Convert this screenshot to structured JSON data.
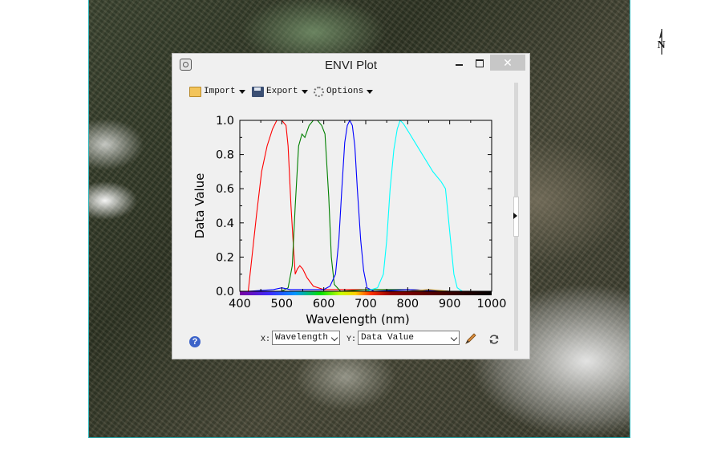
{
  "window": {
    "title": "ENVI Plot"
  },
  "toolbar": {
    "import_label": "Import",
    "export_label": "Export",
    "options_label": "Options"
  },
  "controls": {
    "x_label": "X:",
    "x_value": "Wavelength",
    "y_label": "Y:",
    "y_value": "Data Value"
  },
  "map": {
    "north_label": "N"
  },
  "chart_data": {
    "type": "line",
    "xlabel": "Wavelength (nm)",
    "ylabel": "Data Value",
    "xlim": [
      400,
      1000
    ],
    "ylim": [
      0.0,
      1.0
    ],
    "x_ticks": [
      "400",
      "500",
      "600",
      "700",
      "800",
      "900",
      "1000"
    ],
    "y_ticks": [
      "0.0",
      "0.2",
      "0.4",
      "0.6",
      "0.8",
      "1.0"
    ],
    "grid": false,
    "series": [
      {
        "color": "#ff0000",
        "points": [
          [
            420,
            0.0
          ],
          [
            440,
            0.45
          ],
          [
            452,
            0.7
          ],
          [
            465,
            0.85
          ],
          [
            478,
            0.95
          ],
          [
            488,
            1.0
          ],
          [
            500,
            1.0
          ],
          [
            510,
            0.97
          ],
          [
            515,
            0.85
          ],
          [
            522,
            0.5
          ],
          [
            528,
            0.25
          ],
          [
            532,
            0.1
          ],
          [
            537,
            0.13
          ],
          [
            543,
            0.15
          ],
          [
            550,
            0.13
          ],
          [
            560,
            0.08
          ],
          [
            575,
            0.03
          ],
          [
            600,
            0.01
          ],
          [
            650,
            0.01
          ],
          [
            700,
            0.01
          ],
          [
            800,
            0.01
          ],
          [
            900,
            0.0
          ],
          [
            1000,
            0.0
          ]
        ]
      },
      {
        "color": "#008000",
        "points": [
          [
            420,
            0.0
          ],
          [
            500,
            0.0
          ],
          [
            515,
            0.02
          ],
          [
            525,
            0.15
          ],
          [
            532,
            0.5
          ],
          [
            540,
            0.85
          ],
          [
            548,
            0.92
          ],
          [
            555,
            0.9
          ],
          [
            565,
            0.97
          ],
          [
            575,
            1.0
          ],
          [
            585,
            1.0
          ],
          [
            595,
            0.97
          ],
          [
            603,
            0.92
          ],
          [
            612,
            0.55
          ],
          [
            618,
            0.2
          ],
          [
            625,
            0.04
          ],
          [
            640,
            0.0
          ],
          [
            700,
            0.01
          ],
          [
            800,
            0.01
          ],
          [
            900,
            0.0
          ],
          [
            1000,
            0.0
          ]
        ]
      },
      {
        "color": "#0000ff",
        "points": [
          [
            420,
            0.0
          ],
          [
            480,
            0.01
          ],
          [
            500,
            0.02
          ],
          [
            520,
            0.01
          ],
          [
            560,
            0.01
          ],
          [
            600,
            0.01
          ],
          [
            615,
            0.03
          ],
          [
            628,
            0.1
          ],
          [
            636,
            0.3
          ],
          [
            643,
            0.6
          ],
          [
            650,
            0.87
          ],
          [
            656,
            0.97
          ],
          [
            662,
            1.0
          ],
          [
            668,
            0.97
          ],
          [
            674,
            0.85
          ],
          [
            680,
            0.6
          ],
          [
            688,
            0.3
          ],
          [
            695,
            0.12
          ],
          [
            703,
            0.02
          ],
          [
            720,
            0.0
          ],
          [
            800,
            0.01
          ],
          [
            900,
            0.0
          ],
          [
            1000,
            0.0
          ]
        ]
      },
      {
        "color": "#00ffff",
        "points": [
          [
            420,
            0.0
          ],
          [
            700,
            0.0
          ],
          [
            728,
            0.02
          ],
          [
            742,
            0.1
          ],
          [
            750,
            0.3
          ],
          [
            758,
            0.6
          ],
          [
            767,
            0.83
          ],
          [
            775,
            0.95
          ],
          [
            782,
            1.0
          ],
          [
            790,
            0.98
          ],
          [
            805,
            0.92
          ],
          [
            820,
            0.86
          ],
          [
            840,
            0.78
          ],
          [
            860,
            0.7
          ],
          [
            880,
            0.64
          ],
          [
            890,
            0.6
          ],
          [
            896,
            0.45
          ],
          [
            902,
            0.3
          ],
          [
            910,
            0.1
          ],
          [
            918,
            0.02
          ],
          [
            930,
            0.0
          ],
          [
            1000,
            0.0
          ]
        ]
      },
      {
        "color": "#b8860b",
        "points": [
          [
            420,
            0.0
          ],
          [
            600,
            0.0
          ],
          [
            700,
            0.0
          ],
          [
            760,
            0.0
          ],
          [
            800,
            0.0
          ],
          [
            850,
            0.01
          ],
          [
            900,
            0.0
          ],
          [
            1000,
            0.0
          ]
        ]
      }
    ]
  }
}
